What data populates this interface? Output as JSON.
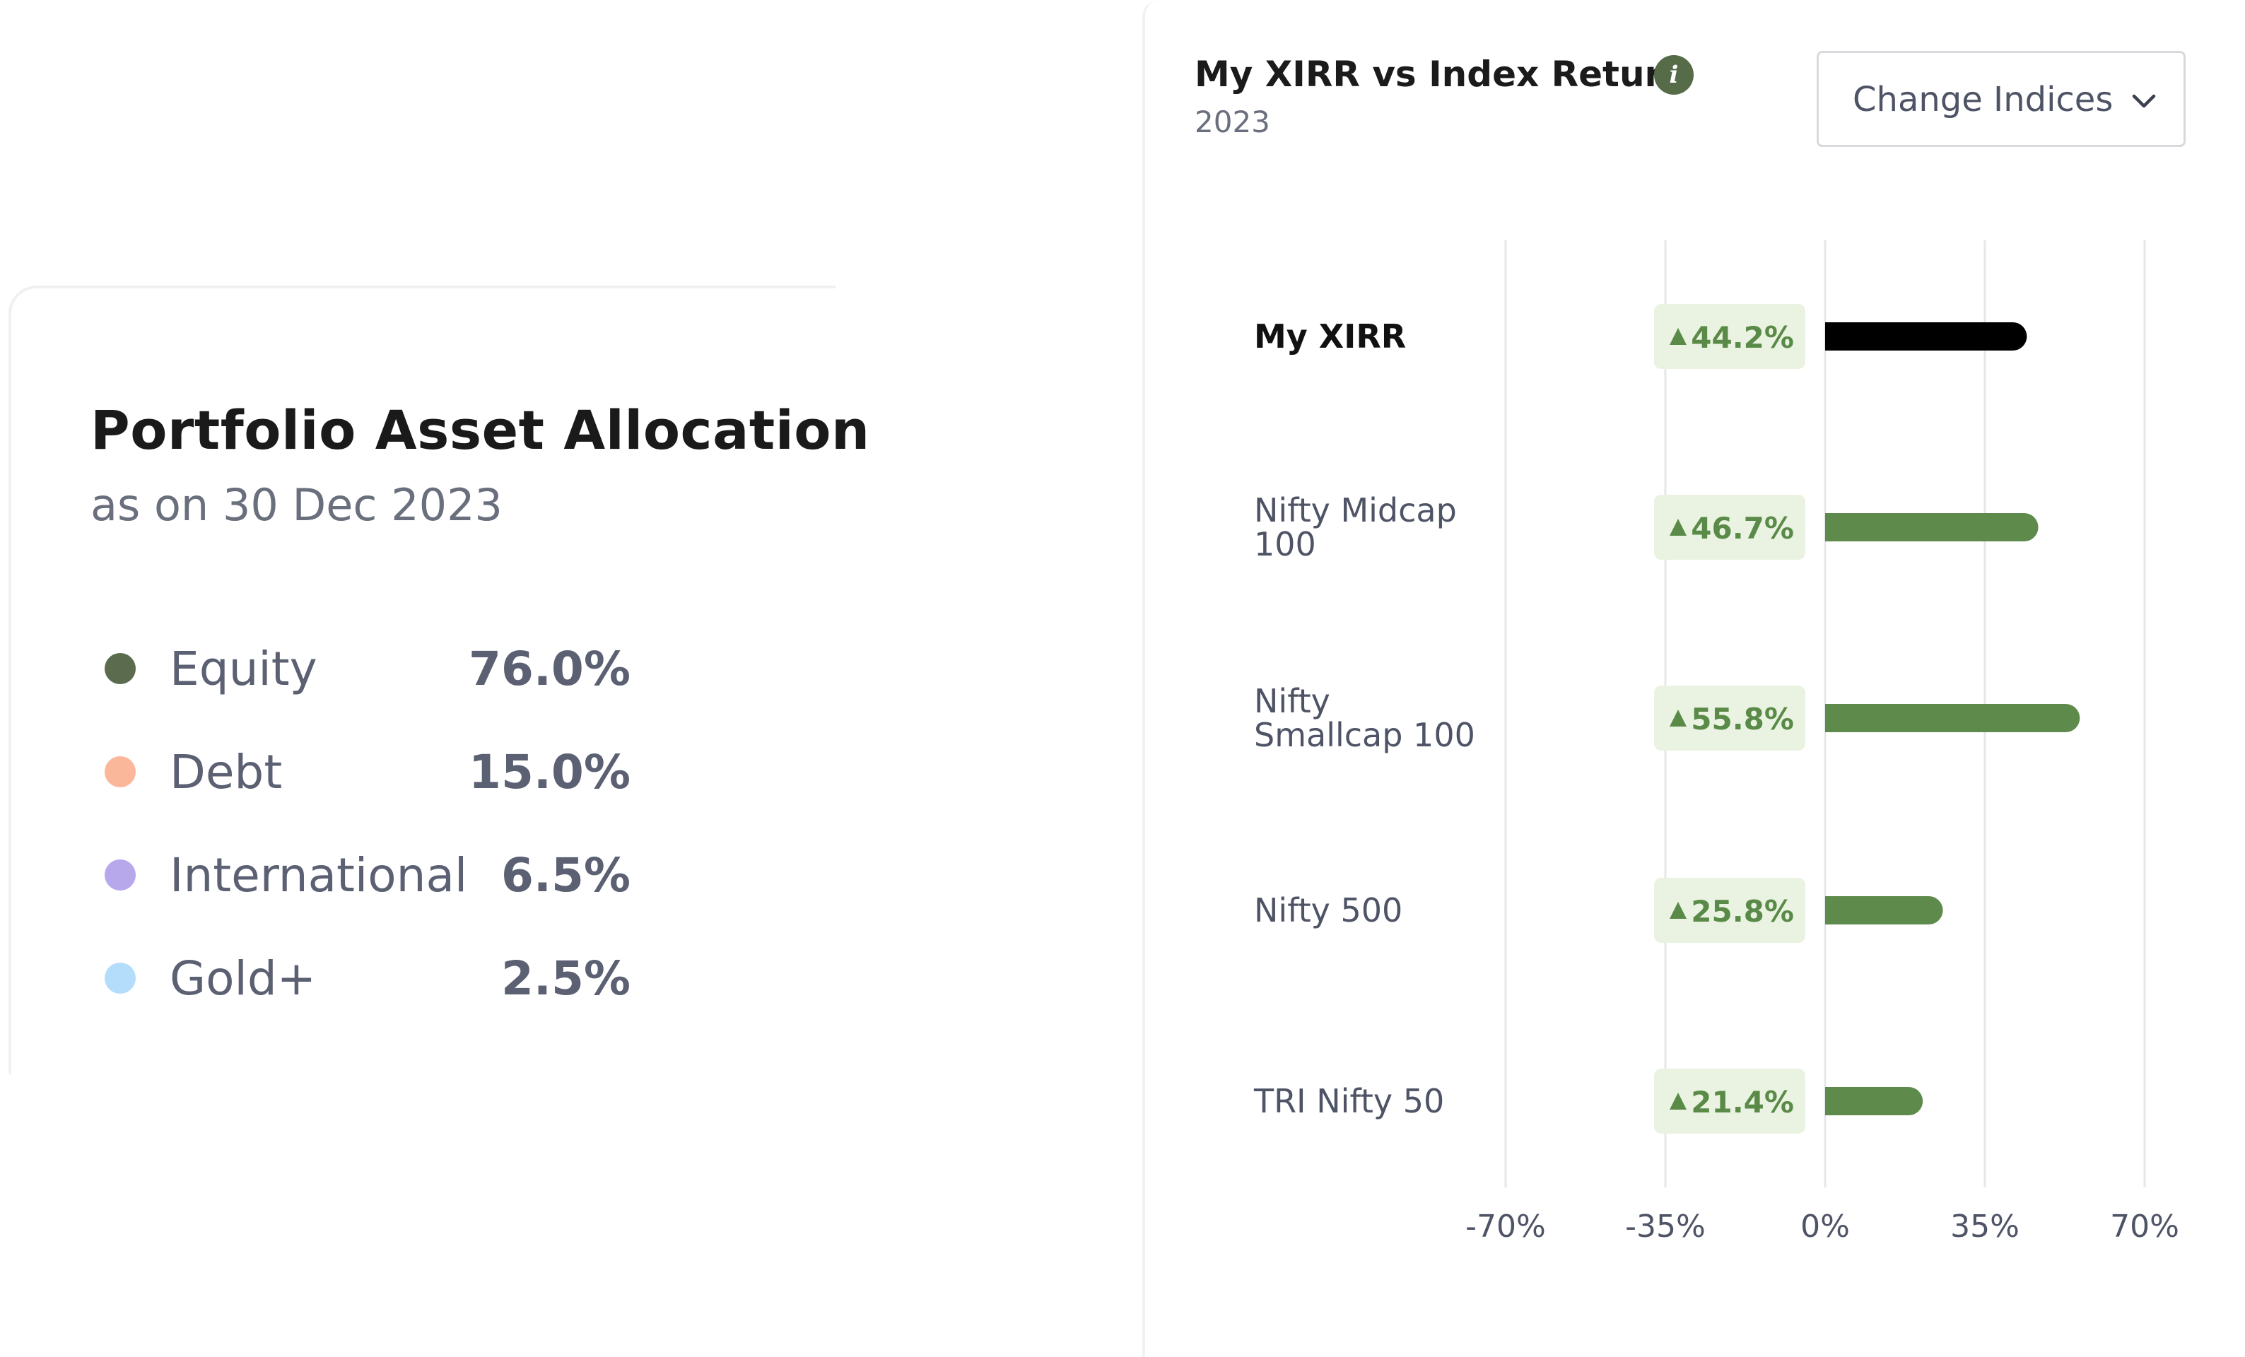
{
  "allocation": {
    "title": "Portfolio Asset Allocation",
    "subtitle": "as on 30 Dec 2023",
    "items": [
      {
        "label": "Equity",
        "value": "76.0%",
        "color": "#5a6b4e"
      },
      {
        "label": "Debt",
        "value": "15.0%",
        "color": "#fbb79a"
      },
      {
        "label": "International",
        "value": "6.5%",
        "color": "#b7a8ec"
      },
      {
        "label": "Gold+",
        "value": "2.5%",
        "color": "#b4dcfb"
      }
    ]
  },
  "xirr": {
    "title": "My XIRR vs Index Return",
    "year": "2023",
    "info_icon": "info-icon",
    "change_indices_label": "Change Indices"
  },
  "chart_data": {
    "type": "bar",
    "orientation": "horizontal",
    "categories": [
      "My XIRR",
      "Nifty Midcap 100",
      "Nifty Smallcap 100",
      "Nifty 500",
      "TRI Nifty 50"
    ],
    "category_lines": [
      [
        "My XIRR"
      ],
      [
        "Nifty Midcap",
        "100"
      ],
      [
        "Nifty",
        "Smallcap 100"
      ],
      [
        "Nifty 500"
      ],
      [
        "TRI Nifty 50"
      ]
    ],
    "values": [
      44.2,
      46.7,
      55.8,
      25.8,
      21.4
    ],
    "value_labels": [
      "44.2%",
      "46.7%",
      "55.8%",
      "25.8%",
      "21.4%"
    ],
    "bar_colors": [
      "#000000",
      "#5e8a4c",
      "#5e8a4c",
      "#5e8a4c",
      "#5e8a4c"
    ],
    "badge_bg": "#eaf3e1",
    "badge_text_color": "#5a8a47",
    "xlim": [
      -70,
      70
    ],
    "xticks": [
      -70,
      -35,
      0,
      35,
      70
    ],
    "xtick_labels": [
      "-70%",
      "-35%",
      "0%",
      "35%",
      "70%"
    ],
    "grid": true
  }
}
